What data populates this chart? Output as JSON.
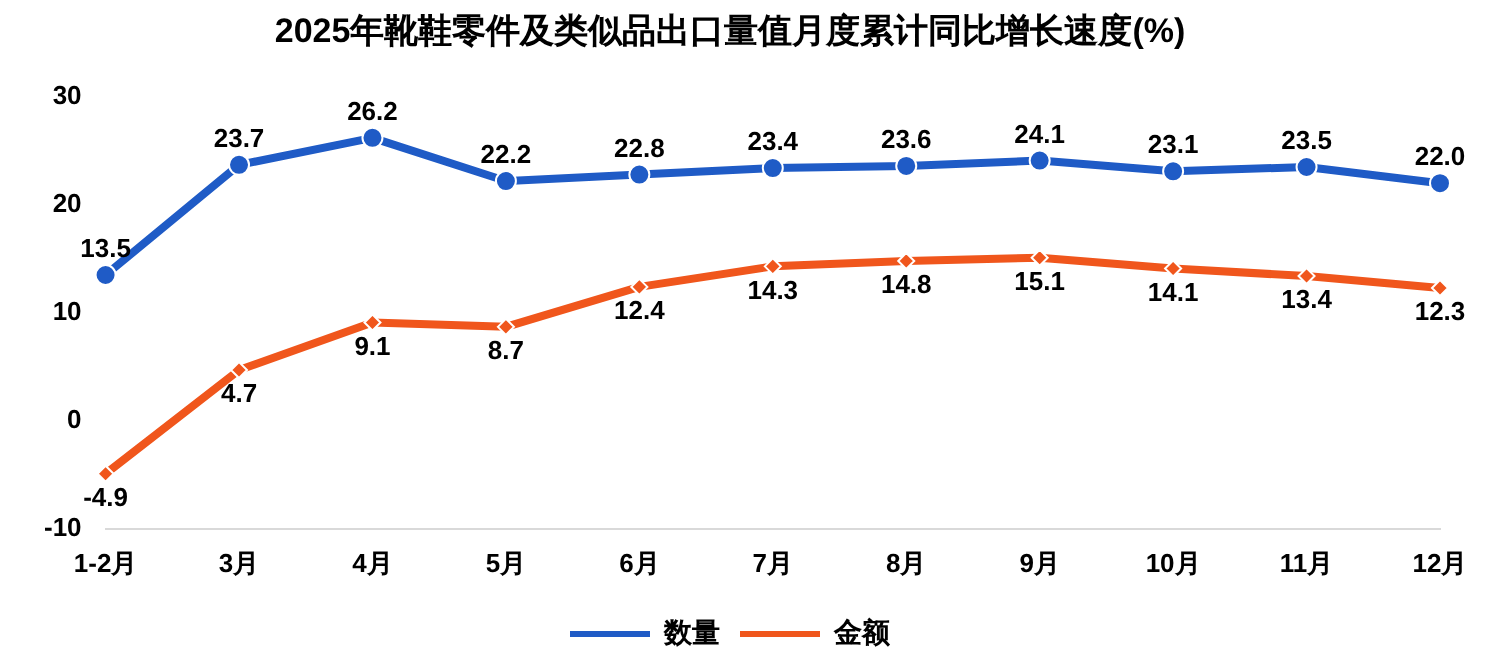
{
  "chart_data": {
    "type": "line",
    "title": "2025年靴鞋零件及类似品出口量值月度累计同比增长速度(%)",
    "categories": [
      "1-2月",
      "3月",
      "4月",
      "5月",
      "6月",
      "7月",
      "8月",
      "9月",
      "10月",
      "11月",
      "12月"
    ],
    "series": [
      {
        "name": "数量",
        "color": "#1f5bc6",
        "marker": "circle",
        "values": [
          13.5,
          23.7,
          26.2,
          22.2,
          22.8,
          23.4,
          23.6,
          24.1,
          23.1,
          23.5,
          22.0
        ],
        "value_labels": [
          "13.5",
          "23.7",
          "26.2",
          "22.2",
          "22.8",
          "23.4",
          "23.6",
          "24.1",
          "23.1",
          "23.5",
          "22.0"
        ]
      },
      {
        "name": "金额",
        "color": "#f0561c",
        "marker": "diamond",
        "values": [
          -4.9,
          4.7,
          9.1,
          8.7,
          12.4,
          14.3,
          14.8,
          15.1,
          14.1,
          13.4,
          12.3
        ],
        "value_labels": [
          "-4.9",
          "4.7",
          "9.1",
          "8.7",
          "12.4",
          "14.3",
          "14.8",
          "15.1",
          "14.1",
          "13.4",
          "12.3"
        ]
      }
    ],
    "ylim": [
      -10,
      30
    ],
    "yticks": [
      -10,
      0,
      10,
      20,
      30
    ],
    "grid": false,
    "legend": "bottom",
    "line_style": "solid"
  }
}
